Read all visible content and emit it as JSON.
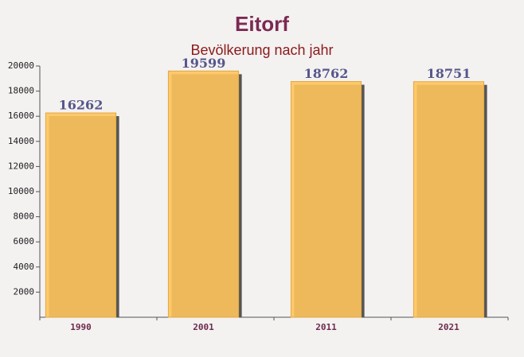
{
  "chart_data": {
    "type": "bar",
    "title": "Eitorf",
    "subtitle": "Bevölkerung nach jahr",
    "categories": [
      "1990",
      "2001",
      "2011",
      "2021"
    ],
    "values": [
      16262,
      19599,
      18762,
      18751
    ],
    "color": "#ffc45c",
    "ylim": [
      0,
      20000
    ],
    "yticks": [
      2000,
      4000,
      6000,
      8000,
      10000,
      12000,
      14000,
      16000,
      18000,
      20000
    ]
  }
}
